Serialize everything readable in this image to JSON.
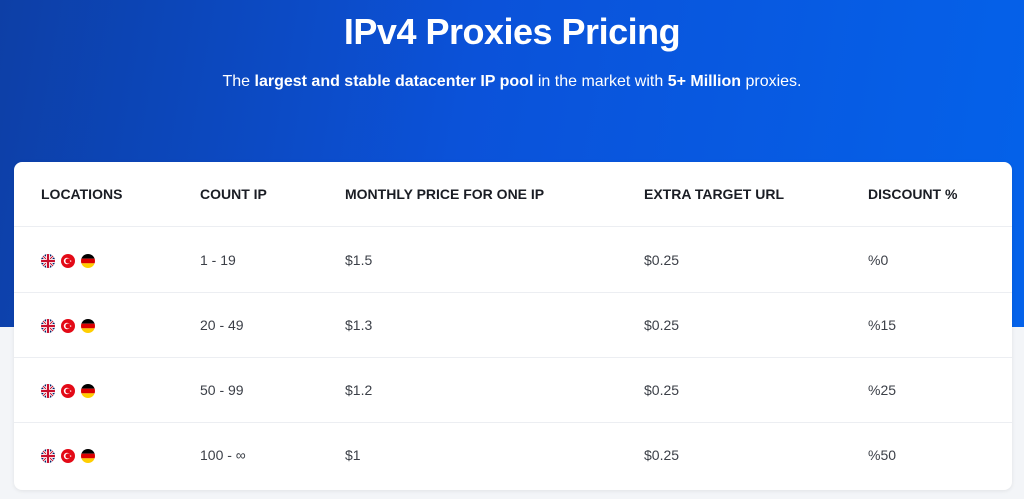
{
  "hero": {
    "title": "IPv4 Proxies Pricing",
    "subtitle_parts": [
      "The ",
      "largest and stable datacenter IP pool",
      " in the market with ",
      "5+ Million",
      " proxies."
    ]
  },
  "table": {
    "headers": [
      "LOCATIONS",
      "COUNT IP",
      "MONTHLY PRICE FOR ONE IP",
      "EXTRA TARGET URL",
      "DISCOUNT %"
    ],
    "location_flags": [
      "uk-flag-icon",
      "turkey-flag-icon",
      "germany-flag-icon"
    ],
    "rows": [
      {
        "count": "1 - 19",
        "price": "$1.5",
        "extra": "$0.25",
        "discount": "%0"
      },
      {
        "count": "20 - 49",
        "price": "$1.3",
        "extra": "$0.25",
        "discount": "%15"
      },
      {
        "count": "50 - 99",
        "price": "$1.2",
        "extra": "$0.25",
        "discount": "%25"
      },
      {
        "count": "100 - ∞",
        "price": "$1",
        "extra": "$0.25",
        "discount": "%50"
      }
    ]
  },
  "colors": {
    "hero_start": "#0d3fa6",
    "hero_end": "#0462ea",
    "uk_blue": "#012169",
    "uk_red": "#C8102E",
    "turkey_red": "#E30A17",
    "germany_black": "#000000",
    "germany_red": "#DD0000",
    "germany_gold": "#FFCE00"
  }
}
